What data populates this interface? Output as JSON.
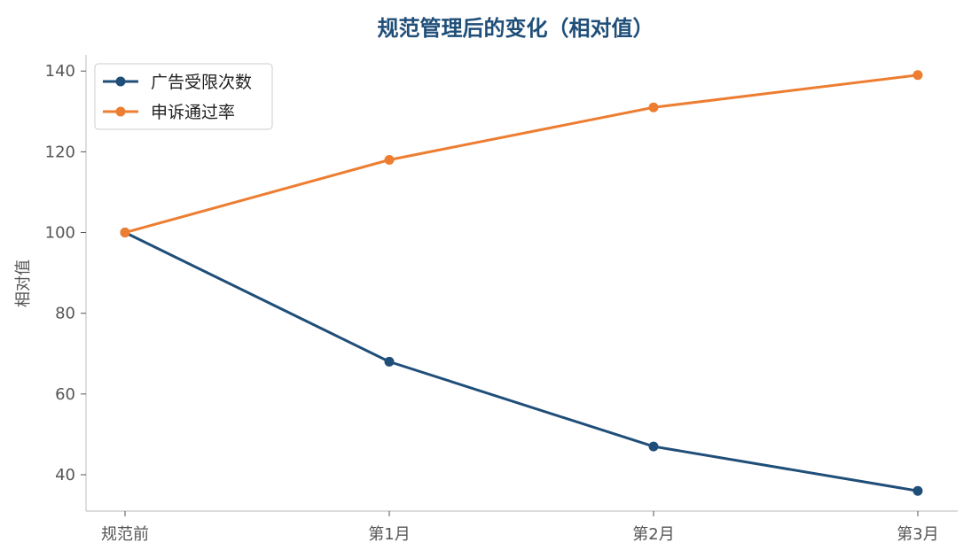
{
  "chart_data": {
    "type": "line",
    "title": "规范管理后的变化（相对值）",
    "xlabel": "",
    "ylabel": "相对值",
    "categories": [
      "规范前",
      "第1月",
      "第2月",
      "第3月"
    ],
    "ylim": [
      31,
      144
    ],
    "yticks": [
      40,
      60,
      80,
      100,
      120,
      140
    ],
    "grid": false,
    "legend_position": "top-left",
    "series": [
      {
        "name": "广告受限次数",
        "color": "#1f4e79",
        "values": [
          100,
          68,
          47,
          36
        ]
      },
      {
        "name": "申诉通过率",
        "color": "#ed7d31",
        "values": [
          100,
          118,
          131,
          139
        ]
      }
    ]
  }
}
